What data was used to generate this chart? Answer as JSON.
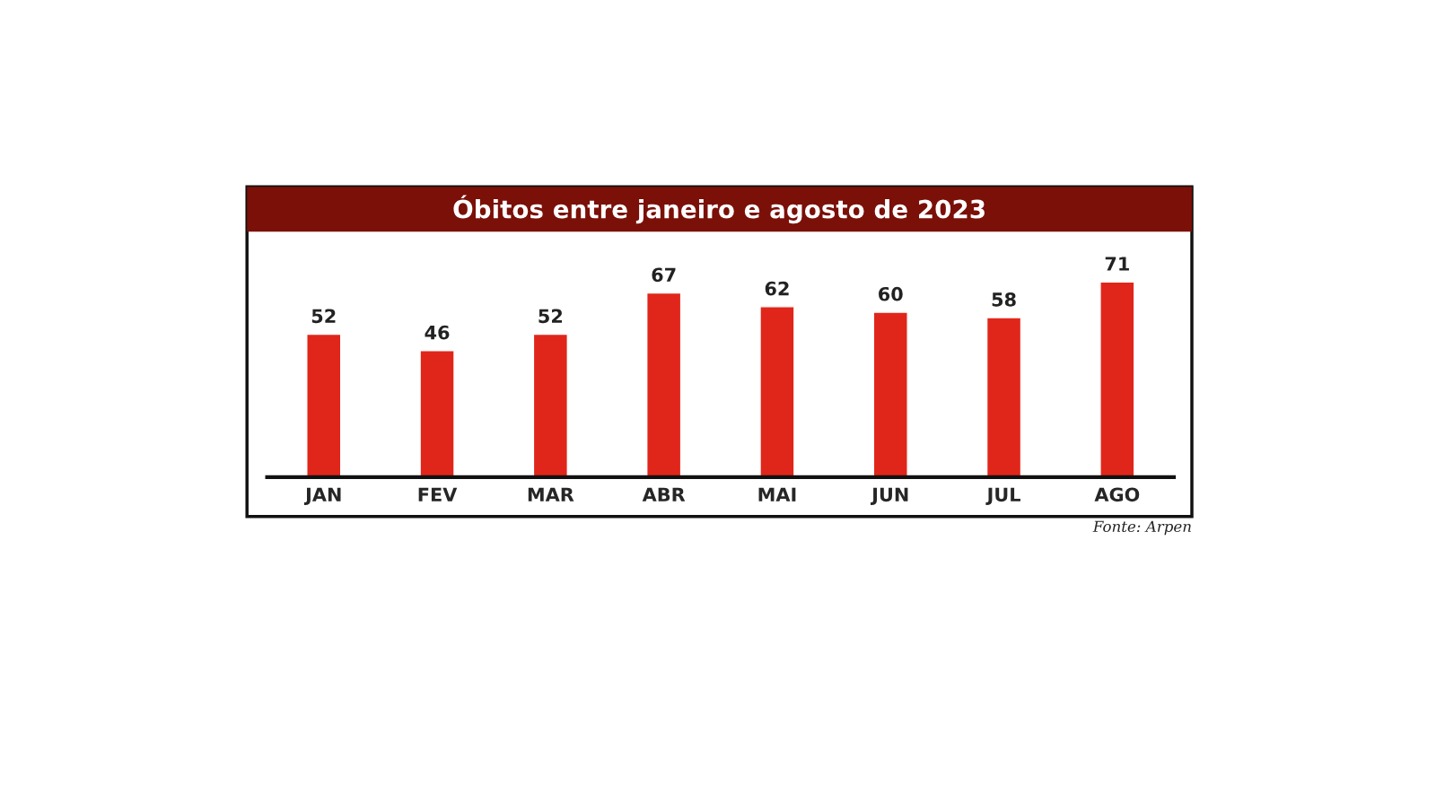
{
  "chart_data": {
    "type": "bar",
    "title": "Óbitos entre janeiro e agosto de 2023",
    "categories": [
      "JAN",
      "FEV",
      "MAR",
      "ABR",
      "MAI",
      "JUN",
      "JUL",
      "AGO"
    ],
    "values": [
      52,
      46,
      52,
      67,
      62,
      60,
      58,
      71
    ],
    "color": "#e0261a",
    "data_labels": true,
    "tick_labels": "x",
    "grid": false,
    "legend": false,
    "annotations": [
      "Fonte: Arpen"
    ]
  }
}
